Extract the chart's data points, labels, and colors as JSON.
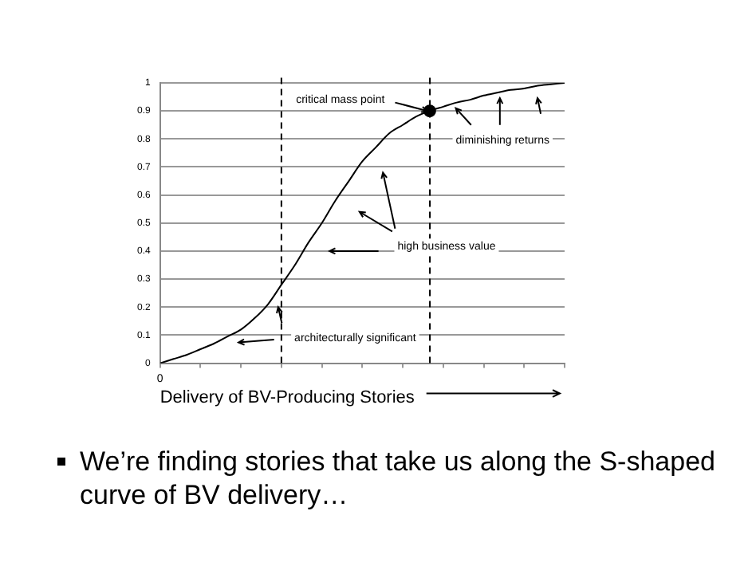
{
  "chart_data": {
    "type": "line",
    "xlabel": "Delivery of BV-Producing Stories",
    "categories": [
      null,
      null,
      null,
      null,
      null,
      null,
      null,
      null,
      null,
      null,
      null,
      null,
      null,
      null,
      null,
      null,
      null,
      null,
      null,
      null,
      null,
      null,
      null,
      null,
      null,
      null,
      null,
      null,
      null,
      null,
      null
    ],
    "series": [
      {
        "color": "#000000",
        "values": [
          0,
          0.015,
          0.03,
          0.05,
          0.07,
          0.095,
          0.12,
          0.16,
          0.21,
          0.28,
          0.35,
          0.43,
          0.5,
          0.58,
          0.65,
          0.72,
          0.77,
          0.82,
          0.85,
          0.88,
          0.9,
          0.915,
          0.93,
          0.94,
          0.955,
          0.965,
          0.975,
          0.98,
          0.99,
          0.995,
          1
        ]
      },
      {
        "type": "scatter",
        "color": "#000000",
        "marker": "circle",
        "values": [
          null,
          null,
          null,
          null,
          null,
          null,
          null,
          null,
          null,
          null,
          null,
          null,
          null,
          null,
          null,
          null,
          null,
          null,
          null,
          null,
          0.9,
          null,
          null,
          null,
          null,
          null,
          null,
          null,
          null,
          null,
          null
        ]
      }
    ],
    "ylim": [
      0,
      1
    ],
    "yticks": [
      0,
      0.1,
      0.2,
      0.3,
      0.4,
      0.5,
      0.6,
      0.7,
      0.8,
      0.9,
      1
    ],
    "grid": "y",
    "legend": false,
    "marker": "none",
    "annotations": [
      "critical mass point",
      "diminishing returns",
      "high business value",
      "architecturally significant",
      "0",
      "We’re finding stories that take us along the S-shaped curve of BV delivery…"
    ]
  }
}
